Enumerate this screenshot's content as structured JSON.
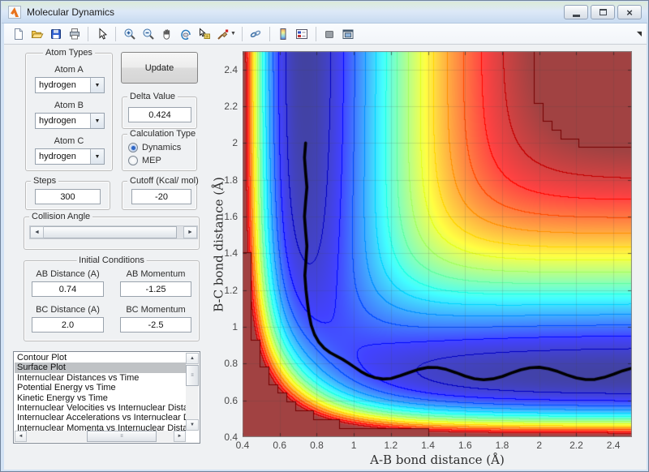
{
  "window": {
    "title": "Molecular Dynamics",
    "controls": [
      "minimize",
      "maximize",
      "close"
    ]
  },
  "toolbar": {
    "buttons": [
      "new-figure",
      "open-file",
      "save-figure",
      "print-figure",
      "edit-plot",
      "zoom-in",
      "zoom-out",
      "pan",
      "rotate-3d",
      "data-cursor",
      "brush-data",
      "link-plot",
      "insert-colorbar",
      "insert-legend",
      "hide-plot-tools",
      "show-plot-tools-dock"
    ]
  },
  "panels": {
    "atom_types": {
      "title": "Atom Types",
      "fields": [
        {
          "label": "Atom A",
          "value": "hydrogen"
        },
        {
          "label": "Atom B",
          "value": "hydrogen"
        },
        {
          "label": "Atom C",
          "value": "hydrogen"
        }
      ]
    },
    "update": {
      "label": "Update"
    },
    "delta": {
      "title": "Delta Value",
      "value": "0.424"
    },
    "calculation_type": {
      "title": "Calculation Type",
      "options": [
        {
          "label": "Dynamics",
          "selected": true
        },
        {
          "label": "MEP",
          "selected": false
        }
      ]
    },
    "steps": {
      "title": "Steps",
      "value": "300"
    },
    "cutoff": {
      "title": "Cutoff (Kcal/ mol)",
      "value": "-20"
    },
    "collision_angle": {
      "title": "Collision Angle"
    },
    "initial_conditions": {
      "title": "Initial Conditions",
      "fields": [
        {
          "label": "AB Distance (A)",
          "value": "0.74"
        },
        {
          "label": "AB Momentum",
          "value": "-1.25"
        },
        {
          "label": "BC Distance (A)",
          "value": "2.0"
        },
        {
          "label": "BC Momentum",
          "value": "-2.5"
        }
      ]
    },
    "plot_list": {
      "selected_index": 1,
      "items": [
        "Contour Plot",
        "Surface Plot",
        "Internuclear Distances vs Time",
        "Potential Energy vs Time",
        "Kinetic Energy vs Time",
        "Internuclear Velocities vs Internuclear Distance",
        "Internuclear Accelerations vs Internuclear Distance",
        "Internuclear Momenta vs Internuclear Distance"
      ]
    }
  },
  "chart_data": {
    "type": "contour",
    "title": "",
    "xlabel": "A-B bond distance (Å)",
    "ylabel": "B-C bond distance (Å)",
    "x_range": [
      0.4,
      2.5
    ],
    "y_range": [
      0.4,
      2.5
    ],
    "xticks": [
      0.4,
      0.6,
      0.8,
      1,
      1.2,
      1.4,
      1.6,
      1.8,
      2,
      2.2,
      2.4
    ],
    "yticks": [
      0.4,
      0.6,
      0.8,
      1,
      1.2,
      1.4,
      1.6,
      1.8,
      2,
      2.2,
      2.4
    ],
    "grid": true,
    "legend": "none",
    "colormap": "jet",
    "fill_alpha": 0.74,
    "surface_model": "LEPS collinear A-B-C potential energy surface (kcal/mol)",
    "energy_cutoff_kcal_mol": -20,
    "leps_params": {
      "D": 109.4,
      "beta": 1.942,
      "re": 0.7419,
      "sato": 0.1
    },
    "contour_line_levels": 15,
    "trajectory": {
      "color": "#000000",
      "start_ab": 0.74,
      "start_bc": 2.0,
      "points": [
        [
          0.74,
          2.0
        ],
        [
          0.734,
          1.92
        ],
        [
          0.74,
          1.84
        ],
        [
          0.747,
          1.76
        ],
        [
          0.74,
          1.68
        ],
        [
          0.734,
          1.6
        ],
        [
          0.74,
          1.52
        ],
        [
          0.747,
          1.44
        ],
        [
          0.742,
          1.36
        ],
        [
          0.736,
          1.28
        ],
        [
          0.742,
          1.2
        ],
        [
          0.75,
          1.13
        ],
        [
          0.758,
          1.07
        ],
        [
          0.77,
          1.01
        ],
        [
          0.788,
          0.958
        ],
        [
          0.812,
          0.916
        ],
        [
          0.84,
          0.884
        ],
        [
          0.872,
          0.86
        ],
        [
          0.905,
          0.842
        ],
        [
          0.938,
          0.824
        ],
        [
          0.97,
          0.804
        ],
        [
          1.003,
          0.781
        ],
        [
          1.038,
          0.757
        ],
        [
          1.075,
          0.737
        ],
        [
          1.115,
          0.723
        ],
        [
          1.158,
          0.716
        ],
        [
          1.2,
          0.719
        ],
        [
          1.25,
          0.734
        ],
        [
          1.3,
          0.752
        ],
        [
          1.35,
          0.769
        ],
        [
          1.4,
          0.779
        ],
        [
          1.45,
          0.778
        ],
        [
          1.5,
          0.768
        ],
        [
          1.55,
          0.751
        ],
        [
          1.6,
          0.732
        ],
        [
          1.65,
          0.718
        ],
        [
          1.7,
          0.712
        ],
        [
          1.75,
          0.717
        ],
        [
          1.8,
          0.73
        ],
        [
          1.85,
          0.749
        ],
        [
          1.9,
          0.766
        ],
        [
          1.95,
          0.777
        ],
        [
          2.0,
          0.78
        ],
        [
          2.05,
          0.772
        ],
        [
          2.1,
          0.757
        ],
        [
          2.15,
          0.738
        ],
        [
          2.2,
          0.722
        ],
        [
          2.25,
          0.713
        ],
        [
          2.3,
          0.714
        ],
        [
          2.35,
          0.725
        ],
        [
          2.4,
          0.742
        ],
        [
          2.45,
          0.761
        ],
        [
          2.5,
          0.775
        ]
      ]
    }
  }
}
